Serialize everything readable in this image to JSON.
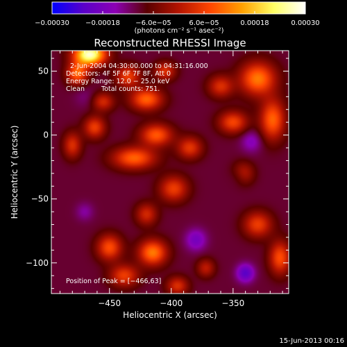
{
  "chart_data": {
    "type": "heatmap",
    "title": "Reconstructed RHESSI Image",
    "xlabel": "Heliocentric X (arcsec)",
    "ylabel": "Heliocentric Y (arcsec)",
    "xlim": [
      -497,
      -305
    ],
    "ylim": [
      -124,
      66
    ],
    "x_ticks": [
      {
        "value": -450,
        "label": "−450"
      },
      {
        "value": -400,
        "label": "−400"
      },
      {
        "value": -350,
        "label": "−350"
      }
    ],
    "y_ticks": [
      {
        "value": 50,
        "label": "50"
      },
      {
        "value": 0,
        "label": "0"
      },
      {
        "value": -50,
        "label": "−50"
      },
      {
        "value": -100,
        "label": "−100"
      }
    ],
    "colorbar": {
      "min": -0.0003,
      "max": 0.0003,
      "ticks": [
        {
          "value": -0.0003,
          "label": "−0.00030"
        },
        {
          "value": -0.00018,
          "label": "−0.00018"
        },
        {
          "value": -6e-05,
          "label": "−6.0e−05"
        },
        {
          "value": 6e-05,
          "label": "6.0e−05"
        },
        {
          "value": 0.00018,
          "label": "0.00018"
        },
        {
          "value": 0.0003,
          "label": "0.00030"
        }
      ],
      "unit_label": "(photons cm⁻² s⁻¹ asec⁻²)",
      "colors": [
        "#0000ff",
        "#5a00c8",
        "#8c00b4",
        "#5a0000",
        "#b41400",
        "#ff4600",
        "#ffa000",
        "#ffff64",
        "#ffffff"
      ]
    },
    "annotations": {
      "time_range": "2-Jun-2004 04:30:00.000 to 04:31:16.000",
      "detectors": "Detectors: 4F 5F 6F 7F 8F, Att 0",
      "energy_range": "Energy Range: 12.0 − 25.0 keV",
      "method": "Clean",
      "total_counts": "Total counts: 751.",
      "peak_position": "Position of Peak = [−466,63]"
    },
    "peak": {
      "x": -466,
      "y": 63
    },
    "sources": [
      {
        "x": -466,
        "y": 63,
        "sx": 9,
        "sy": 6,
        "value": 0.00034
      },
      {
        "x": -476,
        "y": 48,
        "sx": 6,
        "sy": 6,
        "value": 0.00016
      },
      {
        "x": -435,
        "y": 46,
        "sx": 7,
        "sy": 6,
        "value": 0.00012
      },
      {
        "x": -405,
        "y": 50,
        "sx": 6,
        "sy": 5,
        "value": 0.0001
      },
      {
        "x": -330,
        "y": 44,
        "sx": 10,
        "sy": 9,
        "value": 0.00018
      },
      {
        "x": -360,
        "y": 38,
        "sx": 7,
        "sy": 6,
        "value": 0.0001
      },
      {
        "x": -420,
        "y": 28,
        "sx": 9,
        "sy": 6,
        "value": 0.00016
      },
      {
        "x": -455,
        "y": 26,
        "sx": 6,
        "sy": 5,
        "value": 9e-05
      },
      {
        "x": -318,
        "y": 12,
        "sx": 7,
        "sy": 11,
        "value": 0.00016
      },
      {
        "x": -350,
        "y": 10,
        "sx": 8,
        "sy": 6,
        "value": 0.00013
      },
      {
        "x": -462,
        "y": 6,
        "sx": 6,
        "sy": 6,
        "value": 0.00012
      },
      {
        "x": -412,
        "y": 0,
        "sx": 9,
        "sy": 6,
        "value": 0.00015
      },
      {
        "x": -480,
        "y": -8,
        "sx": 5,
        "sy": 7,
        "value": 0.0001
      },
      {
        "x": -430,
        "y": -18,
        "sx": 12,
        "sy": 6,
        "value": 0.00016
      },
      {
        "x": -385,
        "y": -10,
        "sx": 7,
        "sy": 6,
        "value": 0.00011
      },
      {
        "x": -398,
        "y": -42,
        "sx": 8,
        "sy": 7,
        "value": 0.00012
      },
      {
        "x": -342,
        "y": -30,
        "sx": 6,
        "sy": 6,
        "value": 8e-05
      },
      {
        "x": -420,
        "y": -62,
        "sx": 6,
        "sy": 6,
        "value": 9e-05
      },
      {
        "x": -330,
        "y": -70,
        "sx": 8,
        "sy": 7,
        "value": 0.00012
      },
      {
        "x": -312,
        "y": -96,
        "sx": 6,
        "sy": 9,
        "value": 0.00014
      },
      {
        "x": -450,
        "y": -88,
        "sx": 7,
        "sy": 7,
        "value": 0.00014
      },
      {
        "x": -415,
        "y": -92,
        "sx": 8,
        "sy": 7,
        "value": 0.00018
      },
      {
        "x": -438,
        "y": -110,
        "sx": 8,
        "sy": 6,
        "value": 0.00012
      },
      {
        "x": -395,
        "y": -118,
        "sx": 6,
        "sy": 5,
        "value": 0.0001
      },
      {
        "x": -372,
        "y": -104,
        "sx": 5,
        "sy": 5,
        "value": 7e-05
      },
      {
        "x": -470,
        "y": -60,
        "sx": 5,
        "sy": 5,
        "value": -8e-05
      },
      {
        "x": -380,
        "y": -82,
        "sx": 6,
        "sy": 6,
        "value": -0.00012
      },
      {
        "x": -340,
        "y": -108,
        "sx": 5,
        "sy": 5,
        "value": -0.00016
      },
      {
        "x": -345,
        "y": -32,
        "sx": 5,
        "sy": 5,
        "value": -8e-05
      },
      {
        "x": -335,
        "y": -5,
        "sx": 6,
        "sy": 6,
        "value": -0.0001
      },
      {
        "x": -470,
        "y": 30,
        "sx": 6,
        "sy": 6,
        "value": -6e-05
      }
    ]
  },
  "footer": {
    "timestamp": "15-Jun-2013 00:16"
  }
}
